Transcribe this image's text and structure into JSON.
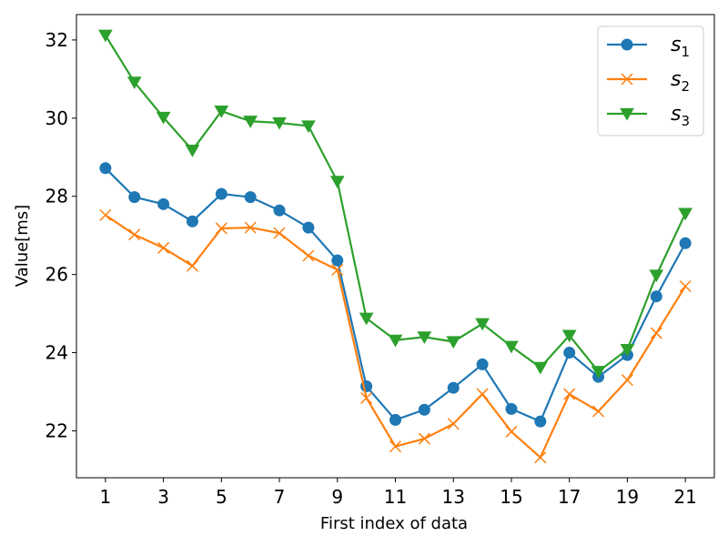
{
  "chart_data": {
    "type": "line",
    "title": "",
    "xlabel": "First index of data",
    "ylabel": "Value[ms]",
    "x": [
      1,
      2,
      3,
      4,
      5,
      6,
      7,
      8,
      9,
      10,
      11,
      12,
      13,
      14,
      15,
      16,
      17,
      18,
      19,
      20,
      21
    ],
    "xticks": [
      1,
      3,
      5,
      7,
      9,
      11,
      13,
      15,
      17,
      19,
      21
    ],
    "yticks": [
      22,
      24,
      26,
      28,
      30,
      32
    ],
    "xlim": [
      0.0,
      22.0
    ],
    "ylim": [
      20.8,
      32.65
    ],
    "grid": false,
    "legend_position": "top-right",
    "series": [
      {
        "name": "s_1",
        "name_main": "s",
        "name_sub": "1",
        "color": "#1f77b4",
        "marker": "circle",
        "values": [
          28.72,
          27.98,
          27.8,
          27.36,
          28.06,
          27.98,
          27.64,
          27.2,
          26.36,
          23.14,
          22.28,
          22.54,
          23.1,
          23.7,
          22.56,
          22.24,
          24.0,
          23.38,
          23.94,
          25.44,
          26.8
        ]
      },
      {
        "name": "s_2",
        "name_main": "s",
        "name_sub": "2",
        "color": "#ff7f0e",
        "marker": "x",
        "values": [
          27.52,
          27.02,
          26.68,
          26.22,
          27.18,
          27.2,
          27.06,
          26.48,
          26.12,
          22.84,
          21.6,
          21.8,
          22.18,
          22.94,
          21.98,
          21.32,
          22.94,
          22.5,
          23.3,
          24.5,
          25.7
        ]
      },
      {
        "name": "s_3",
        "name_main": "s",
        "name_sub": "3",
        "color": "#2ca02c",
        "marker": "triangle-down",
        "values": [
          32.12,
          30.92,
          30.02,
          29.18,
          30.18,
          29.92,
          29.88,
          29.8,
          28.38,
          24.88,
          24.32,
          24.4,
          24.28,
          24.74,
          24.16,
          23.62,
          24.44,
          23.52,
          24.08,
          25.98,
          27.56
        ]
      }
    ]
  }
}
